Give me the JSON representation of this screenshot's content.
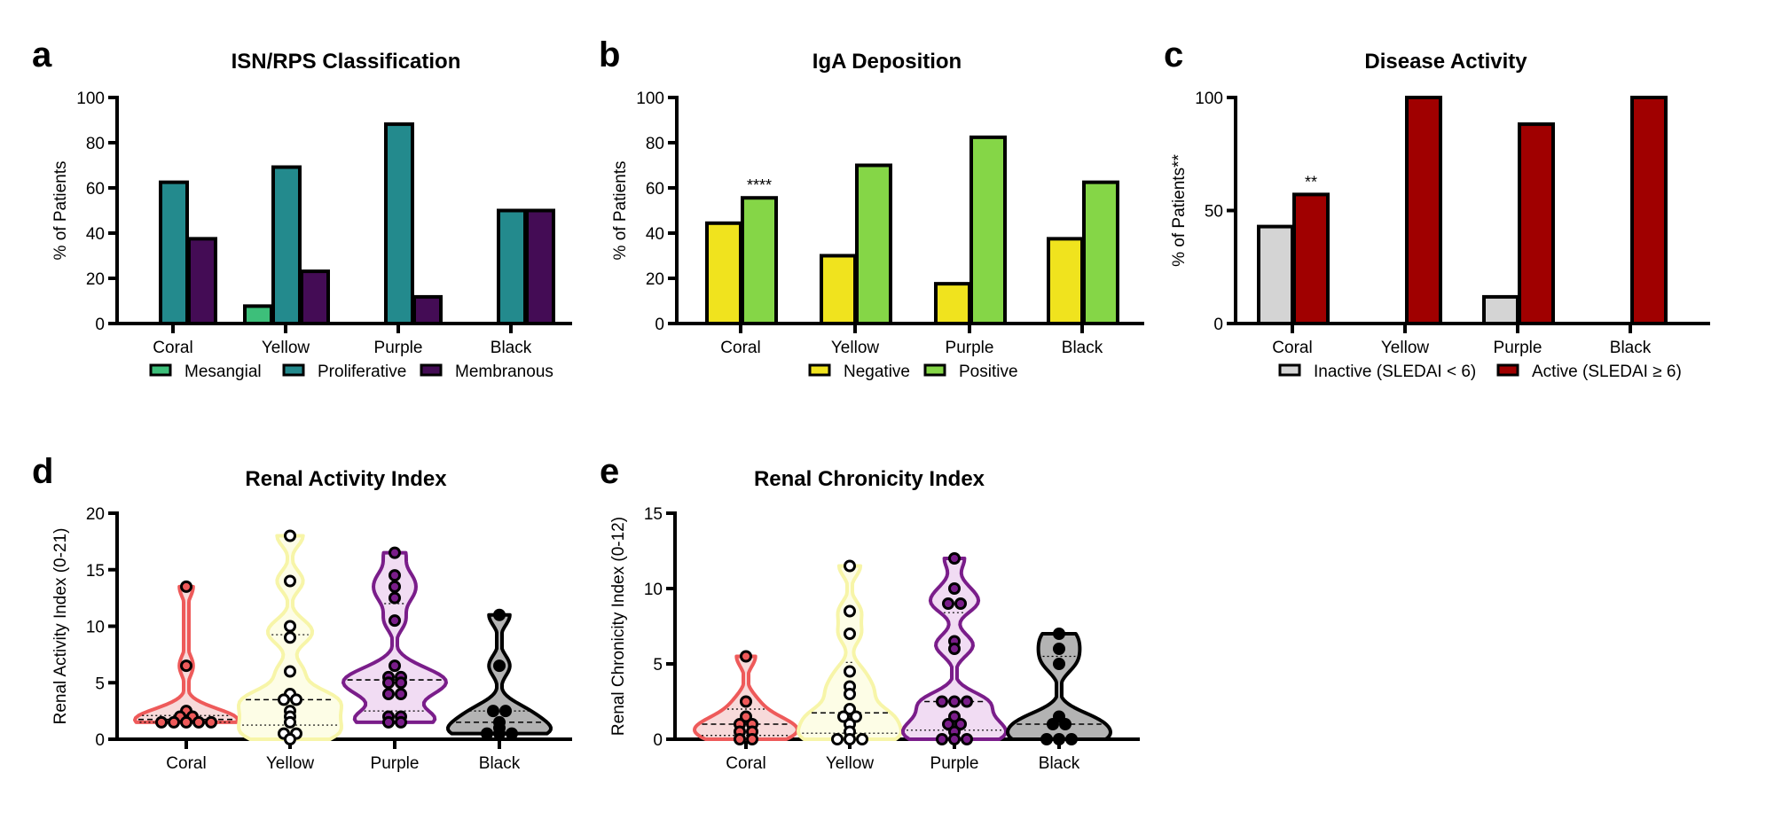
{
  "figure": {
    "panels": [
      "a",
      "b",
      "c",
      "d",
      "e"
    ]
  },
  "chart_data": [
    {
      "id": "a",
      "letter": "a",
      "type": "bar",
      "title": "ISN/RPS Classification",
      "xlabel": "",
      "ylabel": "% of Patients",
      "ylim": [
        0,
        100
      ],
      "yticks": [
        0,
        20,
        40,
        60,
        80,
        100
      ],
      "grid": false,
      "legend_position": "bottom",
      "categories": [
        "Coral",
        "Yellow",
        "Purple",
        "Black"
      ],
      "series": [
        {
          "name": "Mesangial",
          "color": "#3dbf7a",
          "values": [
            0,
            7.7,
            0,
            0
          ]
        },
        {
          "name": "Proliferative",
          "color": "#238a8d",
          "values": [
            62.5,
            69.2,
            88.2,
            50
          ]
        },
        {
          "name": "Membranous",
          "color": "#440c55",
          "values": [
            37.5,
            23.1,
            11.8,
            50
          ]
        }
      ],
      "annotations": []
    },
    {
      "id": "b",
      "letter": "b",
      "type": "bar",
      "title": "IgA Deposition",
      "xlabel": "",
      "ylabel": "% of Patients",
      "ylim": [
        0,
        100
      ],
      "yticks": [
        0,
        20,
        40,
        60,
        80,
        100
      ],
      "grid": false,
      "legend_position": "bottom",
      "categories": [
        "Coral",
        "Yellow",
        "Purple",
        "Black"
      ],
      "series": [
        {
          "name": "Negative",
          "color": "#f0e31e",
          "values": [
            44.4,
            30,
            17.6,
            37.5
          ]
        },
        {
          "name": "Positive",
          "color": "#85d647",
          "values": [
            55.6,
            70,
            82.4,
            62.5
          ]
        }
      ],
      "annotations": [
        {
          "category": "Coral",
          "series": "Positive",
          "text": "****"
        }
      ]
    },
    {
      "id": "c",
      "letter": "c",
      "type": "bar",
      "title": "Disease Activity",
      "xlabel": "",
      "ylabel": "% of Patients**",
      "ylim": [
        0,
        100
      ],
      "yticks": [
        0,
        50,
        100
      ],
      "grid": false,
      "legend_position": "bottom",
      "categories": [
        "Coral",
        "Yellow",
        "Purple",
        "Black"
      ],
      "series": [
        {
          "name": "Inactive (SLEDAI < 6)",
          "color": "#d4d4d4",
          "values": [
            42.9,
            0,
            11.8,
            0
          ]
        },
        {
          "name": "Active (SLEDAI ≥ 6)",
          "color": "#a00000",
          "values": [
            57.1,
            100,
            88.2,
            100
          ]
        }
      ],
      "annotations": [
        {
          "category": "Coral",
          "series": "Active (SLEDAI ≥ 6)",
          "text": "**"
        }
      ]
    },
    {
      "id": "d",
      "letter": "d",
      "type": "violin",
      "title": "Renal Activity Index",
      "xlabel": "",
      "ylabel": "Renal Activity Index (0-21)",
      "ylim": [
        0,
        20
      ],
      "yticks": [
        0,
        5,
        10,
        15,
        20
      ],
      "grid": false,
      "categories": [
        "Coral",
        "Yellow",
        "Purple",
        "Black"
      ],
      "groups": [
        {
          "name": "Coral",
          "fill": "#f7dada",
          "stroke": "#ee5a5a",
          "point_fill": "#ee5a5a",
          "median": 1.75,
          "q1": 1.5,
          "q3": 2.1,
          "values": [
            13.5,
            6.5,
            2.5,
            2,
            2,
            1.5,
            1.5,
            1.5,
            1.5,
            1.5
          ]
        },
        {
          "name": "Yellow",
          "fill": "#fdfde6",
          "stroke": "#f7f5a8",
          "point_fill": "#ffffff",
          "median": 3.5,
          "q1": 1.25,
          "q3": 9.25,
          "values": [
            18,
            14,
            10,
            9,
            6,
            4,
            3.5,
            3.5,
            2.5,
            2,
            1.5,
            0.5,
            0.5,
            0
          ]
        },
        {
          "name": "Purple",
          "fill": "#f1dcf3",
          "stroke": "#7a1d8a",
          "point_fill": "#7a1d8a",
          "median": 5.25,
          "q1": 2.5,
          "q3": 12,
          "values": [
            16.5,
            14.5,
            13.5,
            12.5,
            10.5,
            6.5,
            5.5,
            5.5,
            5,
            5,
            4,
            4,
            2,
            2,
            1.5,
            1.5
          ]
        },
        {
          "name": "Black",
          "fill": "#b3b3b3",
          "stroke": "#000000",
          "point_fill": "#000000",
          "median": 1.5,
          "q1": 0.5,
          "q3": 2.5,
          "values": [
            11,
            6.5,
            2.5,
            2.5,
            1.5,
            1,
            0.5,
            0.5,
            0.5
          ]
        }
      ]
    },
    {
      "id": "e",
      "letter": "e",
      "type": "violin",
      "title": "Renal Chronicity Index",
      "xlabel": "",
      "ylabel": "Renal Chronicity Index (0-12)",
      "ylim": [
        0,
        15
      ],
      "yticks": [
        0,
        5,
        10,
        15
      ],
      "grid": false,
      "categories": [
        "Coral",
        "Yellow",
        "Purple",
        "Black"
      ],
      "groups": [
        {
          "name": "Coral",
          "fill": "#f7dada",
          "stroke": "#ee5a5a",
          "point_fill": "#ee5a5a",
          "median": 1,
          "q1": 0.25,
          "q3": 2,
          "values": [
            5.5,
            2.5,
            1.5,
            1,
            1,
            0.5,
            0.5,
            0,
            0
          ]
        },
        {
          "name": "Yellow",
          "fill": "#fdfde6",
          "stroke": "#f7f5a8",
          "point_fill": "#ffffff",
          "median": 1.75,
          "q1": 0.4,
          "q3": 5.1,
          "values": [
            11.5,
            8.5,
            7,
            4.5,
            3.5,
            3,
            2,
            1.5,
            1.5,
            1,
            0.5,
            0,
            0,
            0
          ]
        },
        {
          "name": "Purple",
          "fill": "#f1dcf3",
          "stroke": "#7a1d8a",
          "point_fill": "#7a1d8a",
          "median": 2.5,
          "q1": 0.6,
          "q3": 8.4,
          "values": [
            12,
            10,
            9,
            9,
            6.5,
            6,
            2.5,
            2.5,
            2.5,
            1.5,
            1,
            1,
            0.5,
            0,
            0,
            0
          ]
        },
        {
          "name": "Black",
          "fill": "#b3b3b3",
          "stroke": "#000000",
          "point_fill": "#000000",
          "median": 1,
          "q1": 0,
          "q3": 5.5,
          "values": [
            7,
            6,
            5,
            1.5,
            1,
            1,
            0,
            0,
            0
          ]
        }
      ]
    }
  ]
}
